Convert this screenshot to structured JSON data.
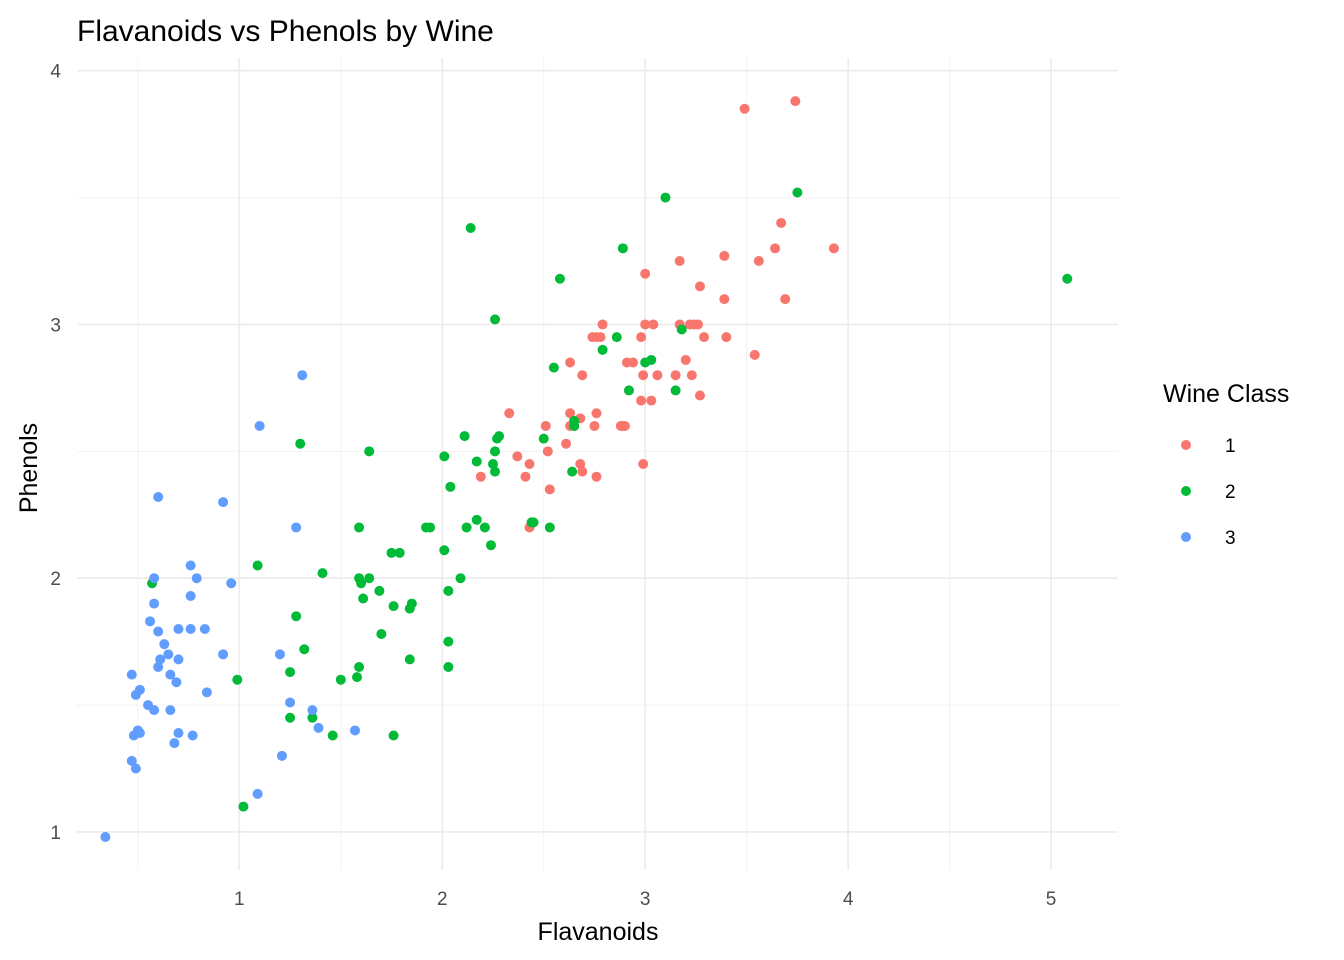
{
  "chart_data": {
    "type": "scatter",
    "title": "Flavanoids vs Phenols by Wine",
    "xlabel": "Flavanoids",
    "ylabel": "Phenols",
    "xlim": [
      0.2,
      5.33
    ],
    "ylim": [
      0.85,
      4.05
    ],
    "x_ticks": [
      1,
      2,
      3,
      4,
      5
    ],
    "y_ticks": [
      1,
      2,
      3,
      4
    ],
    "grid": true,
    "legend": {
      "title": "Wine Class",
      "position": "right",
      "entries": [
        {
          "label": "1",
          "color": "#F8766D"
        },
        {
          "label": "2",
          "color": "#00BA38"
        },
        {
          "label": "3",
          "color": "#619CFF"
        }
      ]
    },
    "series": [
      {
        "name": "1",
        "color": "#F8766D",
        "points": [
          [
            3.49,
            3.85
          ],
          [
            3.74,
            3.88
          ],
          [
            3.93,
            3.3
          ],
          [
            3.67,
            3.4
          ],
          [
            3.64,
            3.3
          ],
          [
            3.69,
            3.1
          ],
          [
            3.56,
            3.25
          ],
          [
            3.54,
            2.88
          ],
          [
            3.39,
            3.27
          ],
          [
            3.39,
            3.1
          ],
          [
            3.4,
            2.95
          ],
          [
            3.27,
            3.15
          ],
          [
            3.17,
            3.25
          ],
          [
            3.24,
            3.0
          ],
          [
            3.22,
            3.0
          ],
          [
            3.26,
            3.0
          ],
          [
            3.17,
            3.0
          ],
          [
            3.2,
            2.86
          ],
          [
            3.29,
            2.95
          ],
          [
            3.23,
            2.8
          ],
          [
            3.27,
            2.72
          ],
          [
            3.15,
            2.8
          ],
          [
            3.0,
            3.2
          ],
          [
            3.04,
            3.0
          ],
          [
            3.0,
            3.0
          ],
          [
            2.98,
            2.95
          ],
          [
            3.06,
            2.8
          ],
          [
            2.99,
            2.8
          ],
          [
            3.03,
            2.7
          ],
          [
            2.98,
            2.7
          ],
          [
            2.99,
            2.45
          ],
          [
            2.91,
            2.85
          ],
          [
            2.94,
            2.85
          ],
          [
            2.79,
            3.0
          ],
          [
            2.76,
            2.95
          ],
          [
            2.74,
            2.95
          ],
          [
            2.78,
            2.95
          ],
          [
            2.63,
            2.85
          ],
          [
            2.69,
            2.8
          ],
          [
            2.88,
            2.6
          ],
          [
            2.89,
            2.6
          ],
          [
            2.9,
            2.6
          ],
          [
            2.76,
            2.65
          ],
          [
            2.65,
            2.6
          ],
          [
            2.63,
            2.6
          ],
          [
            2.68,
            2.63
          ],
          [
            2.75,
            2.6
          ],
          [
            2.61,
            2.53
          ],
          [
            2.63,
            2.65
          ],
          [
            2.68,
            2.45
          ],
          [
            2.69,
            2.42
          ],
          [
            2.76,
            2.4
          ],
          [
            2.51,
            2.6
          ],
          [
            2.52,
            2.5
          ],
          [
            2.33,
            2.65
          ],
          [
            2.37,
            2.48
          ],
          [
            2.43,
            2.45
          ],
          [
            2.41,
            2.4
          ],
          [
            2.19,
            2.4
          ],
          [
            2.43,
            2.2
          ],
          [
            2.53,
            2.35
          ]
        ]
      },
      {
        "name": "2",
        "color": "#00BA38",
        "points": [
          [
            5.08,
            3.18
          ],
          [
            3.75,
            3.52
          ],
          [
            3.1,
            3.5
          ],
          [
            2.89,
            3.3
          ],
          [
            2.14,
            3.38
          ],
          [
            2.58,
            3.18
          ],
          [
            2.26,
            3.02
          ],
          [
            2.86,
            2.95
          ],
          [
            2.79,
            2.9
          ],
          [
            3.18,
            2.98
          ],
          [
            3.03,
            2.86
          ],
          [
            3.0,
            2.85
          ],
          [
            3.15,
            2.74
          ],
          [
            2.92,
            2.74
          ],
          [
            2.55,
            2.83
          ],
          [
            2.65,
            2.62
          ],
          [
            2.65,
            2.6
          ],
          [
            2.11,
            2.56
          ],
          [
            2.28,
            2.56
          ],
          [
            2.27,
            2.55
          ],
          [
            2.5,
            2.55
          ],
          [
            2.26,
            2.5
          ],
          [
            2.64,
            2.42
          ],
          [
            1.3,
            2.53
          ],
          [
            1.64,
            2.5
          ],
          [
            2.01,
            2.48
          ],
          [
            2.17,
            2.46
          ],
          [
            2.25,
            2.45
          ],
          [
            2.26,
            2.42
          ],
          [
            2.04,
            2.36
          ],
          [
            2.17,
            2.23
          ],
          [
            2.12,
            2.2
          ],
          [
            2.21,
            2.2
          ],
          [
            2.44,
            2.22
          ],
          [
            2.45,
            2.22
          ],
          [
            2.53,
            2.2
          ],
          [
            1.92,
            2.2
          ],
          [
            1.94,
            2.2
          ],
          [
            1.59,
            2.2
          ],
          [
            2.24,
            2.13
          ],
          [
            2.01,
            2.11
          ],
          [
            1.75,
            2.1
          ],
          [
            1.79,
            2.1
          ],
          [
            1.09,
            2.05
          ],
          [
            1.41,
            2.02
          ],
          [
            1.59,
            2.0
          ],
          [
            1.64,
            2.0
          ],
          [
            2.09,
            2.0
          ],
          [
            1.6,
            1.98
          ],
          [
            0.57,
            1.98
          ],
          [
            1.61,
            1.92
          ],
          [
            1.69,
            1.95
          ],
          [
            2.03,
            1.95
          ],
          [
            1.28,
            1.85
          ],
          [
            1.76,
            1.89
          ],
          [
            1.85,
            1.9
          ],
          [
            1.84,
            1.88
          ],
          [
            1.7,
            1.78
          ],
          [
            1.32,
            1.72
          ],
          [
            2.03,
            1.75
          ],
          [
            1.25,
            1.63
          ],
          [
            1.58,
            1.61
          ],
          [
            1.59,
            1.65
          ],
          [
            2.03,
            1.65
          ],
          [
            1.5,
            1.6
          ],
          [
            1.84,
            1.68
          ],
          [
            0.99,
            1.6
          ],
          [
            1.25,
            1.45
          ],
          [
            1.36,
            1.45
          ],
          [
            1.46,
            1.38
          ],
          [
            1.76,
            1.38
          ],
          [
            1.02,
            1.1
          ]
        ]
      },
      {
        "name": "3",
        "color": "#619CFF",
        "points": [
          [
            1.31,
            2.8
          ],
          [
            1.1,
            2.6
          ],
          [
            0.6,
            2.32
          ],
          [
            0.92,
            2.3
          ],
          [
            1.28,
            2.2
          ],
          [
            0.76,
            2.05
          ],
          [
            0.58,
            2.0
          ],
          [
            0.79,
            2.0
          ],
          [
            0.96,
            1.98
          ],
          [
            0.76,
            1.93
          ],
          [
            0.58,
            1.9
          ],
          [
            0.56,
            1.83
          ],
          [
            0.7,
            1.8
          ],
          [
            0.76,
            1.8
          ],
          [
            0.83,
            1.8
          ],
          [
            0.6,
            1.79
          ],
          [
            0.63,
            1.74
          ],
          [
            0.65,
            1.7
          ],
          [
            0.92,
            1.7
          ],
          [
            1.2,
            1.7
          ],
          [
            0.61,
            1.68
          ],
          [
            0.7,
            1.68
          ],
          [
            0.6,
            1.65
          ],
          [
            0.66,
            1.62
          ],
          [
            0.47,
            1.62
          ],
          [
            0.69,
            1.59
          ],
          [
            0.84,
            1.55
          ],
          [
            0.51,
            1.56
          ],
          [
            0.49,
            1.54
          ],
          [
            0.55,
            1.5
          ],
          [
            0.58,
            1.48
          ],
          [
            0.66,
            1.48
          ],
          [
            1.25,
            1.51
          ],
          [
            1.36,
            1.48
          ],
          [
            1.39,
            1.41
          ],
          [
            1.57,
            1.4
          ],
          [
            0.48,
            1.38
          ],
          [
            0.5,
            1.4
          ],
          [
            0.51,
            1.39
          ],
          [
            0.7,
            1.39
          ],
          [
            0.77,
            1.38
          ],
          [
            0.68,
            1.35
          ],
          [
            1.21,
            1.3
          ],
          [
            0.47,
            1.28
          ],
          [
            0.49,
            1.25
          ],
          [
            1.09,
            1.15
          ],
          [
            0.34,
            0.98
          ]
        ]
      }
    ]
  }
}
